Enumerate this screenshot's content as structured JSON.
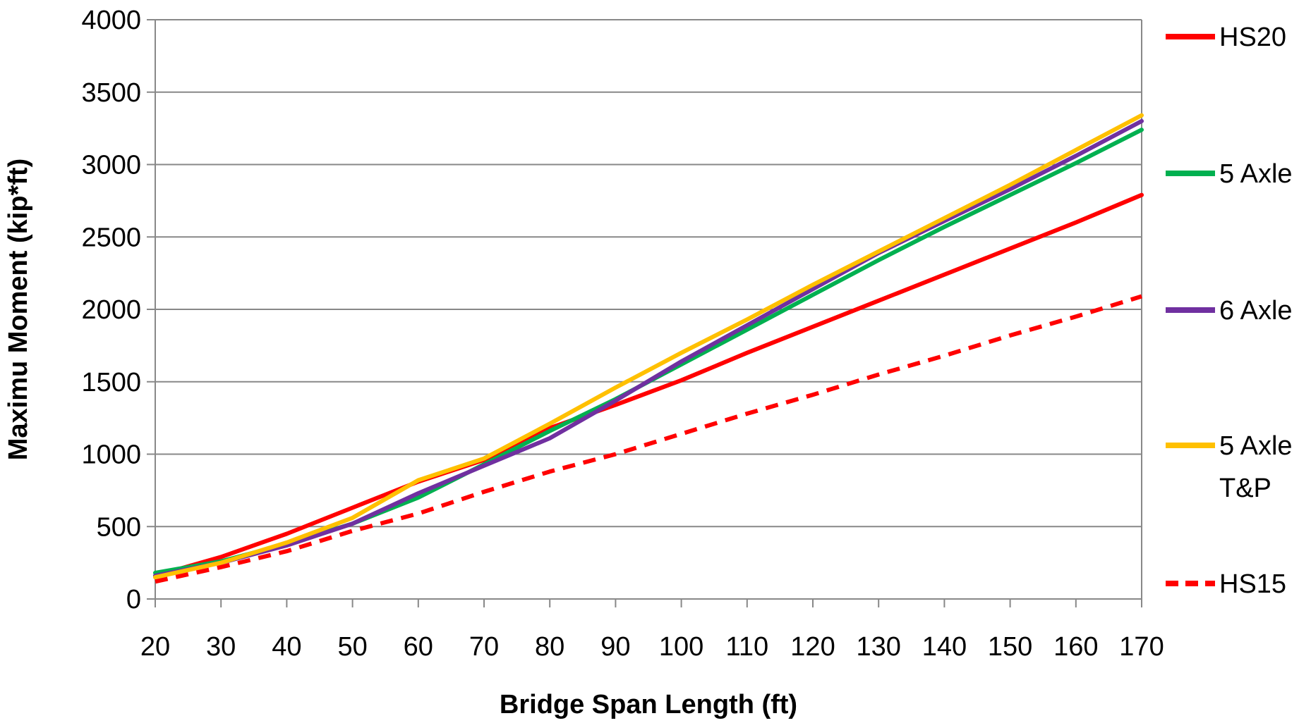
{
  "chart_data": {
    "type": "line",
    "xlabel": "Bridge Span Length (ft)",
    "ylabel": "Maximu Moment (kip*ft)",
    "xlim": [
      20,
      170
    ],
    "ylim": [
      0,
      4000
    ],
    "x_ticks": [
      "20",
      "30",
      "40",
      "50",
      "60",
      "70",
      "80",
      "90",
      "100",
      "110",
      "120",
      "130",
      "140",
      "150",
      "160",
      "170"
    ],
    "y_ticks": [
      "0",
      "500",
      "1000",
      "1500",
      "2000",
      "2500",
      "3000",
      "3500",
      "4000"
    ],
    "grid": "horizontal",
    "legend_position": "right",
    "x": [
      20,
      30,
      40,
      50,
      60,
      70,
      80,
      90,
      100,
      110,
      120,
      130,
      140,
      150,
      160,
      170
    ],
    "series": [
      {
        "name": "HS20",
        "color": "#ff0000",
        "dash": "solid",
        "values": [
          160,
          290,
          450,
          630,
          810,
          960,
          1180,
          1340,
          1510,
          1700,
          1880,
          2060,
          2240,
          2420,
          2600,
          2790
        ]
      },
      {
        "name": "5 Axle",
        "color": "#00b050",
        "dash": "solid",
        "values": [
          180,
          260,
          380,
          520,
          700,
          930,
          1160,
          1380,
          1620,
          1860,
          2100,
          2340,
          2570,
          2790,
          3010,
          3240
        ]
      },
      {
        "name": "6 Axle",
        "color": "#7030a0",
        "dash": "solid",
        "values": [
          160,
          250,
          370,
          520,
          730,
          920,
          1110,
          1370,
          1640,
          1890,
          2140,
          2390,
          2610,
          2830,
          3060,
          3300
        ]
      },
      {
        "name": "5 Axle T&P",
        "color": "#ffc000",
        "dash": "solid",
        "values": [
          150,
          250,
          390,
          560,
          820,
          970,
          1210,
          1460,
          1700,
          1930,
          2170,
          2400,
          2630,
          2860,
          3100,
          3340
        ]
      },
      {
        "name": "HS15",
        "color": "#ff0000",
        "dash": "dashed",
        "values": [
          120,
          220,
          330,
          470,
          590,
          740,
          880,
          1000,
          1140,
          1280,
          1410,
          1550,
          1680,
          1820,
          1950,
          2090
        ]
      }
    ]
  }
}
